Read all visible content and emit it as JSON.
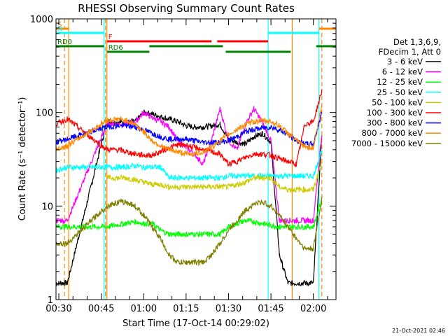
{
  "chart_data": {
    "type": "line",
    "title": "RHESSI Observing Summary Count Rates",
    "xlabel": "Start Time (17-Oct-14 00:29:02)",
    "ylabel": "Count Rate (s⁻¹ detector⁻¹)",
    "y_scale": "log",
    "ylim": [
      1,
      1000
    ],
    "xlim_minutes": [
      0,
      99
    ],
    "x_tick_labels": [
      {
        "minute": 1,
        "label": "00:30"
      },
      {
        "minute": 16,
        "label": "00:45"
      },
      {
        "minute": 31,
        "label": "01:00"
      },
      {
        "minute": 46,
        "label": "01:15"
      },
      {
        "minute": 61,
        "label": "01:30"
      },
      {
        "minute": 76,
        "label": "01:45"
      },
      {
        "minute": 91,
        "label": "02:00"
      }
    ],
    "y_tick_labels": [
      {
        "value": 1,
        "label": "1"
      },
      {
        "value": 10,
        "label": "10"
      },
      {
        "value": 100,
        "label": "100"
      },
      {
        "value": 1000,
        "label": "1000"
      }
    ],
    "legend_header": [
      "Det 1,3,6,9,",
      "FDecim 1, Att 0"
    ],
    "legend_position": "right",
    "data_gaps_minutes": [
      [
        4.5,
        18
      ],
      [
        94.5,
        99
      ]
    ],
    "series": [
      {
        "name": "3 - 6 keV",
        "color": "#000000",
        "x": [
          0,
          1,
          2,
          3,
          4,
          18,
          24,
          28,
          31,
          34,
          37,
          40,
          43,
          46,
          49,
          52,
          55,
          58,
          61,
          64,
          67,
          70,
          73,
          76,
          79,
          82,
          85,
          88,
          91,
          94
        ],
        "y": [
          1.5,
          1.5,
          1.5,
          1.5,
          1.5,
          80,
          78,
          80,
          100,
          97,
          90,
          85,
          80,
          72,
          70,
          70,
          72,
          75,
          52,
          48,
          46,
          55,
          60,
          48,
          3,
          1.5,
          1.5,
          1.5,
          1.5,
          60
        ]
      },
      {
        "name": "6 - 12 keV",
        "color": "#ff00ff",
        "x": [
          0,
          2,
          4,
          18,
          24,
          28,
          31,
          34,
          37,
          40,
          43,
          46,
          49,
          52,
          55,
          58,
          61,
          64,
          67,
          70,
          73,
          76,
          79,
          82,
          85,
          88,
          91,
          94
        ],
        "y": [
          7,
          7,
          7,
          75,
          75,
          78,
          100,
          88,
          80,
          70,
          50,
          42,
          36,
          28,
          50,
          110,
          50,
          40,
          75,
          110,
          78,
          50,
          7,
          7,
          7,
          7,
          7,
          60
        ]
      },
      {
        "name": "12 - 25 keV",
        "color": "#00ff00",
        "x": [
          0,
          2,
          4,
          18,
          24,
          28,
          31,
          34,
          37,
          40,
          43,
          46,
          49,
          52,
          55,
          58,
          61,
          64,
          67,
          70,
          73,
          76,
          79,
          82,
          85,
          88,
          91,
          94
        ],
        "y": [
          6,
          6,
          6,
          6,
          6.5,
          6.8,
          6.5,
          6.5,
          5.5,
          5,
          5,
          5,
          5,
          5,
          5,
          5,
          6,
          6.5,
          7,
          6.8,
          6.5,
          6.2,
          6,
          6,
          6,
          6,
          6,
          12
        ]
      },
      {
        "name": "25 - 50 keV",
        "color": "#00ffff",
        "x": [
          0,
          2,
          4,
          18,
          24,
          28,
          31,
          34,
          37,
          40,
          43,
          46,
          49,
          52,
          55,
          58,
          61,
          64,
          67,
          70,
          73,
          76,
          79,
          82,
          85,
          88,
          91,
          94
        ],
        "y": [
          24,
          25,
          26,
          26,
          26,
          27,
          26,
          26,
          26,
          20,
          20,
          20,
          20,
          20,
          20,
          20,
          21,
          21,
          21,
          21,
          21,
          21,
          21,
          21,
          21,
          21,
          21,
          40
        ]
      },
      {
        "name": "50 - 100 keV",
        "color": "#cccc00",
        "x": [
          18,
          22,
          25,
          28,
          31,
          34,
          37,
          40,
          43,
          46,
          49,
          52,
          55,
          58,
          61,
          64,
          67,
          70,
          73,
          76,
          79,
          82,
          85,
          88,
          91,
          94
        ],
        "y": [
          20,
          20,
          20,
          19,
          18,
          17,
          17,
          16,
          16,
          16,
          16,
          16,
          16,
          16,
          16,
          17,
          18,
          20,
          20,
          20,
          16,
          15,
          15,
          15,
          15,
          30
        ]
      },
      {
        "name": "100 - 300 keV",
        "color": "#ff0000",
        "x": [
          0,
          2,
          4,
          18,
          22,
          25,
          28,
          31,
          34,
          37,
          40,
          43,
          46,
          49,
          52,
          55,
          58,
          61,
          64,
          67,
          70,
          73,
          76,
          79,
          82,
          85,
          88,
          91,
          94
        ],
        "y": [
          75,
          80,
          85,
          40,
          40,
          38,
          36,
          35,
          35,
          38,
          42,
          45,
          45,
          42,
          40,
          38,
          36,
          28,
          30,
          33,
          36,
          36,
          35,
          32,
          30,
          28,
          75,
          80,
          170
        ]
      },
      {
        "name": "300 - 800 keV",
        "color": "#0000ff",
        "x": [
          0,
          2,
          4,
          18,
          22,
          25,
          28,
          31,
          34,
          37,
          40,
          43,
          46,
          49,
          52,
          55,
          58,
          61,
          64,
          67,
          70,
          73,
          76,
          79,
          82,
          85,
          88,
          91,
          94
        ],
        "y": [
          48,
          50,
          52,
          70,
          72,
          72,
          70,
          65,
          60,
          55,
          52,
          52,
          52,
          50,
          48,
          48,
          48,
          50,
          55,
          62,
          66,
          68,
          70,
          65,
          58,
          50,
          46,
          46,
          100
        ]
      },
      {
        "name": "800 - 7000 keV",
        "color": "#ff8800",
        "x": [
          0,
          2,
          4,
          18,
          22,
          25,
          28,
          31,
          34,
          37,
          40,
          43,
          46,
          49,
          52,
          55,
          58,
          61,
          64,
          67,
          70,
          73,
          76,
          79,
          82,
          85,
          88,
          91,
          94
        ],
        "y": [
          40,
          42,
          44,
          82,
          85,
          82,
          75,
          62,
          50,
          44,
          40,
          38,
          36,
          36,
          38,
          42,
          50,
          58,
          66,
          74,
          80,
          82,
          80,
          72,
          60,
          50,
          43,
          42,
          120
        ]
      },
      {
        "name": "7000 - 15000 keV",
        "color": "#808000",
        "x": [
          0,
          2,
          4,
          18,
          22,
          25,
          28,
          31,
          34,
          37,
          40,
          43,
          46,
          49,
          52,
          55,
          58,
          61,
          64,
          67,
          70,
          73,
          76,
          79,
          82,
          85,
          88,
          91,
          94
        ],
        "y": [
          4,
          4,
          4,
          10,
          11,
          11,
          10,
          8,
          6,
          4.5,
          3,
          2.5,
          2.5,
          2.5,
          2.5,
          3,
          4,
          5.5,
          7,
          9,
          10.5,
          11,
          10,
          8,
          6,
          4.5,
          3.5,
          3.5,
          12
        ]
      }
    ],
    "flags": [
      {
        "label": "S",
        "color": "#ff8800",
        "segments": [
          [
            0,
            4.5
          ],
          [
            93,
            99
          ]
        ]
      },
      {
        "label": "N",
        "color": "#00ffff",
        "segments": [
          [
            0,
            17
          ],
          [
            75,
            93
          ]
        ]
      },
      {
        "label": "F",
        "color": "#ff0000",
        "segments": [
          [
            18,
            55
          ],
          [
            57,
            75
          ]
        ]
      },
      {
        "label": "RD0",
        "color": "#008000",
        "segments": [
          [
            0,
            17
          ],
          [
            33,
            59
          ],
          [
            92,
            99
          ]
        ]
      },
      {
        "label": "RD6",
        "color": "#008000",
        "segments": [
          [
            18,
            33
          ],
          [
            60,
            83
          ]
        ]
      }
    ],
    "event_lines": [
      {
        "minute": 3,
        "color": "#ff8800",
        "style": "dashed"
      },
      {
        "minute": 4.5,
        "color": "#ff8800",
        "style": "solid"
      },
      {
        "minute": 17,
        "color": "#00ffff",
        "style": "solid"
      },
      {
        "minute": 17.5,
        "color": "#ff8800",
        "style": "dashed"
      },
      {
        "minute": 18,
        "color": "#ff8800",
        "style": "solid"
      },
      {
        "minute": 75,
        "color": "#00ffff",
        "style": "solid"
      },
      {
        "minute": 83.5,
        "color": "#ff8800",
        "style": "solid"
      },
      {
        "minute": 93,
        "color": "#00ffff",
        "style": "solid"
      },
      {
        "minute": 94,
        "color": "#ff8800",
        "style": "dashed"
      }
    ],
    "timestamp": "21-Oct-2021 02:46"
  }
}
